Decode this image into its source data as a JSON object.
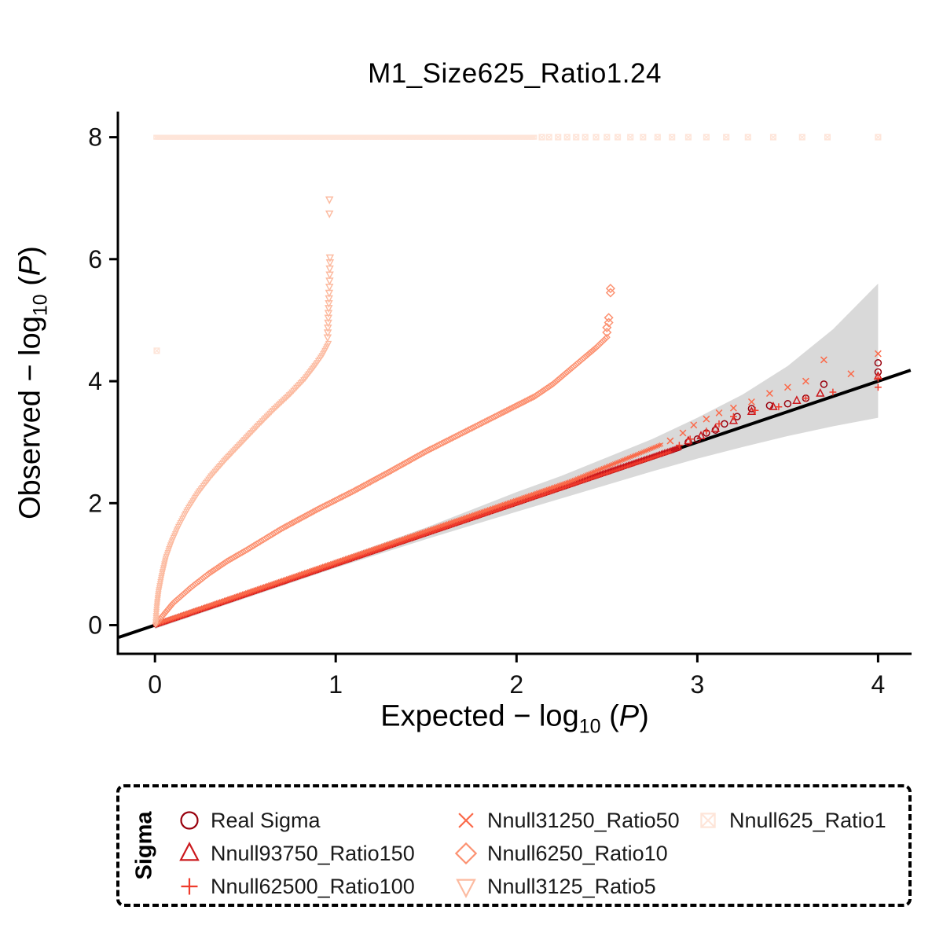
{
  "title": "M1_Size625_Ratio1.24",
  "axes": {
    "x": {
      "label_pre": "Expected − log",
      "label_sub": "10",
      "label_mid": " (",
      "label_var": "P",
      "label_post": ")",
      "ticks": [
        "0",
        "1",
        "2",
        "3",
        "4"
      ],
      "tick_values": [
        0,
        1,
        2,
        3,
        4
      ],
      "domain": [
        -0.205,
        4.185
      ]
    },
    "y": {
      "label_pre": "Observed − log",
      "label_sub": "10",
      "label_mid": " (",
      "label_var": "P",
      "label_post": ")",
      "ticks": [
        "0",
        "2",
        "4",
        "6",
        "8"
      ],
      "tick_values": [
        0,
        2,
        4,
        6,
        8
      ],
      "domain": [
        -0.47,
        8.42
      ]
    }
  },
  "legend": {
    "title": "Sigma",
    "items": [
      {
        "label": "Real Sigma",
        "shape": "circle",
        "color": "#99000D"
      },
      {
        "label": "Nnull93750_Ratio150",
        "shape": "triangle-up",
        "color": "#CB181D"
      },
      {
        "label": "Nnull62500_Ratio100",
        "shape": "plus",
        "color": "#EF3B2C"
      },
      {
        "label": "Nnull31250_Ratio50",
        "shape": "x",
        "color": "#FB6A4A"
      },
      {
        "label": "Nnull6250_Ratio10",
        "shape": "diamond",
        "color": "#FC9272"
      },
      {
        "label": "Nnull3125_Ratio5",
        "shape": "triangle-down",
        "color": "#FCBBA1"
      },
      {
        "label": "Nnull625_Ratio1",
        "shape": "square-x",
        "color": "#FEE5D9"
      }
    ]
  },
  "chart_data": {
    "type": "scatter",
    "title": "M1_Size625_Ratio1.24",
    "xlabel": "Expected -log10(P)",
    "ylabel": "Observed -log10(P)",
    "xlim": [
      -0.2,
      4.2
    ],
    "ylim": [
      -0.5,
      8.4
    ],
    "grid": false,
    "legend_position": "bottom",
    "identity_line": {
      "color": "#000000",
      "width": 4,
      "from": [
        -0.2,
        -0.2
      ],
      "to": [
        4.18,
        4.18
      ]
    },
    "confidence_band": {
      "color": "#D2D2D2",
      "opacity": 0.85,
      "x": [
        0,
        0.5,
        1.0,
        1.5,
        2.0,
        2.25,
        2.5,
        2.75,
        3.0,
        3.25,
        3.5,
        3.75,
        4.0
      ],
      "upper": [
        0.06,
        0.56,
        1.07,
        1.6,
        2.18,
        2.45,
        2.75,
        3.05,
        3.4,
        3.78,
        4.25,
        4.85,
        5.6
      ],
      "lower": [
        -0.06,
        0.44,
        0.94,
        1.41,
        1.86,
        2.08,
        2.3,
        2.52,
        2.73,
        2.92,
        3.1,
        3.26,
        3.4
      ]
    },
    "series": [
      {
        "name": "Real Sigma",
        "shape": "circle",
        "color": "#99000D",
        "dense": [
          [
            0.005,
            0.0
          ],
          [
            2.9,
            2.9
          ]
        ],
        "dense_gap": 2.2,
        "dense_size": 2.6,
        "points": [
          [
            2.95,
            3.0
          ],
          [
            3.0,
            3.05
          ],
          [
            3.05,
            3.15
          ],
          [
            3.1,
            3.2
          ],
          [
            3.15,
            3.3
          ],
          [
            3.22,
            3.42
          ],
          [
            3.3,
            3.55
          ],
          [
            3.4,
            3.6
          ],
          [
            3.5,
            3.63
          ],
          [
            3.6,
            3.72
          ],
          [
            3.7,
            3.95
          ],
          [
            4.0,
            4.15
          ],
          [
            4.0,
            4.3
          ]
        ],
        "point_size": 4.0
      },
      {
        "name": "Nnull93750_Ratio150",
        "shape": "triangle-up",
        "color": "#CB181D",
        "dense": [
          [
            0.005,
            0.012
          ],
          [
            2.9,
            2.912
          ]
        ],
        "dense_gap": 2.2,
        "dense_size": 2.6,
        "points": [
          [
            2.95,
            3.02
          ],
          [
            3.02,
            3.1
          ],
          [
            3.1,
            3.22
          ],
          [
            3.2,
            3.35
          ],
          [
            3.3,
            3.5
          ],
          [
            3.42,
            3.58
          ],
          [
            3.55,
            3.68
          ],
          [
            3.68,
            3.8
          ],
          [
            4.0,
            4.08
          ]
        ],
        "point_size": 4.2
      },
      {
        "name": "Nnull62500_Ratio100",
        "shape": "plus",
        "color": "#EF3B2C",
        "dense": [
          [
            0.005,
            -0.012
          ],
          [
            2.85,
            2.84
          ]
        ],
        "dense_gap": 2.2,
        "dense_size": 2.6,
        "points": [
          [
            2.9,
            2.95
          ],
          [
            2.96,
            3.05
          ],
          [
            3.05,
            3.18
          ],
          [
            3.12,
            3.3
          ],
          [
            3.2,
            3.42
          ],
          [
            3.32,
            3.52
          ],
          [
            3.45,
            3.58
          ],
          [
            3.6,
            3.72
          ],
          [
            3.75,
            3.82
          ],
          [
            4.0,
            3.9
          ],
          [
            4.0,
            4.05
          ]
        ],
        "point_size": 4.4
      },
      {
        "name": "Nnull31250_Ratio50",
        "shape": "x",
        "color": "#FB6A4A",
        "dense": [
          [
            0.005,
            0.024
          ],
          [
            2.3,
            2.36
          ],
          [
            2.8,
            2.96
          ]
        ],
        "dense_gap": 2.2,
        "dense_size": 2.8,
        "points": [
          [
            2.85,
            3.02
          ],
          [
            2.92,
            3.15
          ],
          [
            2.98,
            3.28
          ],
          [
            3.05,
            3.38
          ],
          [
            3.12,
            3.48
          ],
          [
            3.2,
            3.56
          ],
          [
            3.3,
            3.66
          ],
          [
            3.4,
            3.8
          ],
          [
            3.5,
            3.9
          ],
          [
            3.6,
            4.0
          ],
          [
            3.7,
            4.35
          ],
          [
            3.85,
            4.12
          ],
          [
            4.0,
            4.45
          ]
        ],
        "point_size": 4.6
      },
      {
        "name": "Nnull6250_Ratio10",
        "shape": "diamond",
        "color": "#FC9272",
        "dense": [
          [
            0.005,
            0.02
          ],
          [
            0.05,
            0.18
          ],
          [
            0.1,
            0.36
          ],
          [
            0.2,
            0.62
          ],
          [
            0.3,
            0.85
          ],
          [
            0.4,
            1.05
          ],
          [
            0.5,
            1.22
          ],
          [
            0.7,
            1.58
          ],
          [
            0.9,
            1.9
          ],
          [
            1.1,
            2.2
          ],
          [
            1.3,
            2.52
          ],
          [
            1.5,
            2.85
          ],
          [
            1.7,
            3.15
          ],
          [
            1.9,
            3.45
          ],
          [
            2.0,
            3.6
          ],
          [
            2.1,
            3.75
          ],
          [
            2.2,
            3.95
          ],
          [
            2.3,
            4.2
          ],
          [
            2.38,
            4.4
          ],
          [
            2.44,
            4.55
          ],
          [
            2.5,
            4.72
          ]
        ],
        "dense_gap": 2.4,
        "dense_size": 3.0,
        "points": [
          [
            2.5,
            4.8
          ],
          [
            2.5,
            4.88
          ],
          [
            2.51,
            4.96
          ],
          [
            2.51,
            5.04
          ],
          [
            2.52,
            5.45
          ],
          [
            2.52,
            5.52
          ]
        ],
        "point_size": 4.2
      },
      {
        "name": "Nnull3125_Ratio5",
        "shape": "triangle-down",
        "color": "#FCBBA1",
        "dense": [
          [
            0.003,
            0.02
          ],
          [
            0.01,
            0.3
          ],
          [
            0.02,
            0.55
          ],
          [
            0.04,
            0.85
          ],
          [
            0.06,
            1.1
          ],
          [
            0.09,
            1.35
          ],
          [
            0.13,
            1.62
          ],
          [
            0.18,
            1.9
          ],
          [
            0.24,
            2.18
          ],
          [
            0.31,
            2.45
          ],
          [
            0.39,
            2.72
          ],
          [
            0.48,
            3.0
          ],
          [
            0.57,
            3.28
          ],
          [
            0.66,
            3.55
          ],
          [
            0.75,
            3.8
          ],
          [
            0.83,
            4.05
          ],
          [
            0.89,
            4.28
          ],
          [
            0.93,
            4.45
          ],
          [
            0.96,
            4.62
          ]
        ],
        "dense_gap": 2.6,
        "dense_size": 3.0,
        "points": [
          [
            0.955,
            4.72
          ],
          [
            0.956,
            4.8
          ],
          [
            0.957,
            4.88
          ],
          [
            0.958,
            4.96
          ],
          [
            0.959,
            5.04
          ],
          [
            0.96,
            5.12
          ],
          [
            0.961,
            5.2
          ],
          [
            0.962,
            5.28
          ],
          [
            0.963,
            5.36
          ],
          [
            0.964,
            5.45
          ],
          [
            0.965,
            5.55
          ],
          [
            0.966,
            5.65
          ],
          [
            0.967,
            5.75
          ],
          [
            0.967,
            5.85
          ],
          [
            0.968,
            5.95
          ],
          [
            0.968,
            6.03
          ],
          [
            0.965,
            6.75
          ],
          [
            0.965,
            6.98
          ]
        ],
        "point_size": 3.8
      },
      {
        "name": "Nnull625_Ratio1",
        "shape": "square-x",
        "color": "#FEE5D9",
        "dense": [
          [
            0.005,
            8.0
          ],
          [
            2.1,
            8.0
          ]
        ],
        "dense_gap": 2.0,
        "dense_size": 3.0,
        "points": [
          [
            2.14,
            8.0
          ],
          [
            2.18,
            8.0
          ],
          [
            2.23,
            8.0
          ],
          [
            2.28,
            8.0
          ],
          [
            2.33,
            8.0
          ],
          [
            2.38,
            8.0
          ],
          [
            2.44,
            8.0
          ],
          [
            2.5,
            8.0
          ],
          [
            2.56,
            8.0
          ],
          [
            2.63,
            8.0
          ],
          [
            2.7,
            8.0
          ],
          [
            2.78,
            8.0
          ],
          [
            2.86,
            8.0
          ],
          [
            2.95,
            8.0
          ],
          [
            3.05,
            8.0
          ],
          [
            3.16,
            8.0
          ],
          [
            3.28,
            8.0
          ],
          [
            3.42,
            8.0
          ],
          [
            3.58,
            8.0
          ],
          [
            3.72,
            8.0
          ],
          [
            4.0,
            8.0
          ],
          [
            0.01,
            4.5
          ]
        ],
        "point_size": 4.0
      }
    ]
  }
}
